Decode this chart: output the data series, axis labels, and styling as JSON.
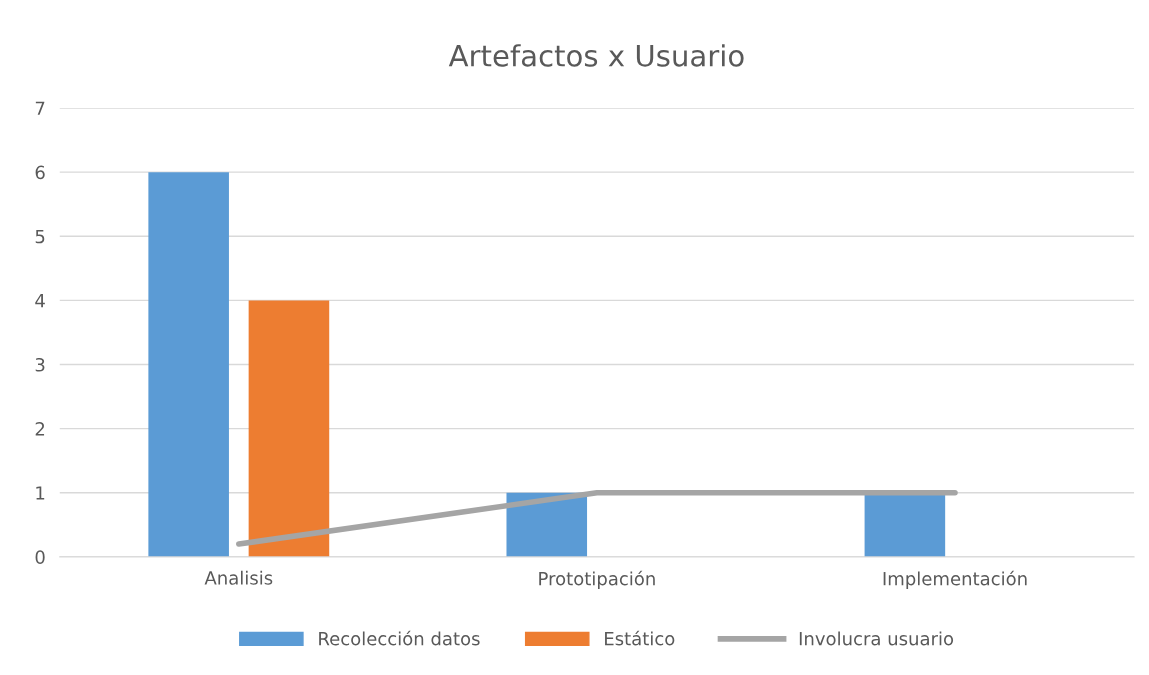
{
  "chart_data": {
    "type": "bar",
    "title": "Artefactos x Usuario",
    "categories": [
      "Analisis",
      "Prototipación",
      "Implementación"
    ],
    "series": [
      {
        "name": "Recolección datos",
        "color": "#5b9bd5",
        "values": [
          6,
          1,
          1
        ]
      },
      {
        "name": "Estático",
        "color": "#ed7d31",
        "values": [
          4,
          0,
          0
        ]
      },
      {
        "name": "Involucra usuario",
        "color": "#a5a5a5",
        "type": "line",
        "values": [
          0.2,
          1,
          1
        ]
      }
    ],
    "ylim": [
      0,
      7
    ],
    "yticks": [
      0,
      1,
      2,
      3,
      4,
      5,
      6,
      7
    ],
    "grid": "y",
    "legend": "bottom"
  }
}
